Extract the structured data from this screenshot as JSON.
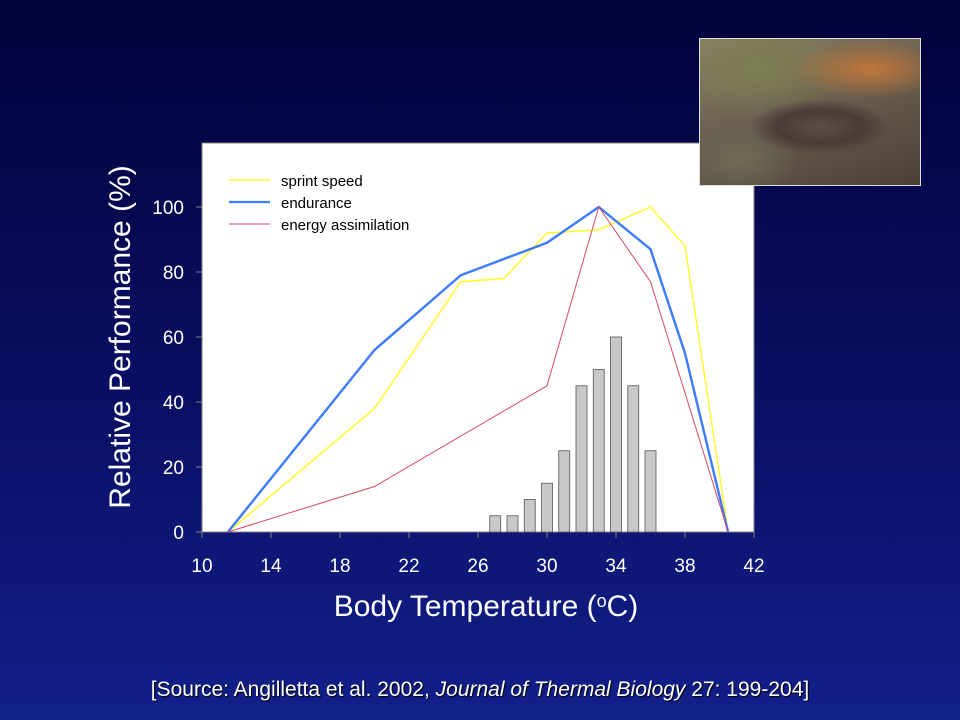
{
  "chart_data": {
    "type": "line",
    "xlabel_main": "Body Temperature (",
    "xlabel_degree": "o",
    "xlabel_unit": "C)",
    "ylabel": "Relative Performance (%)",
    "xlim": [
      10,
      42
    ],
    "ylim": [
      0,
      118
    ],
    "xticks": [
      10,
      14,
      18,
      22,
      26,
      30,
      34,
      38,
      42
    ],
    "yticks": [
      0,
      20,
      40,
      60,
      80,
      100
    ],
    "grid": false,
    "legend_position": "top-left",
    "series": [
      {
        "name": "sprint speed",
        "color": "#ffff00",
        "x": [
          11.5,
          20,
          25,
          27.5,
          30,
          33,
          36,
          38,
          40.5
        ],
        "y": [
          0,
          38,
          77,
          78,
          92,
          93,
          100,
          88,
          0
        ]
      },
      {
        "name": "endurance",
        "color": "#3d7bff",
        "x": [
          11.5,
          20,
          25,
          30,
          33,
          36,
          38,
          40.5
        ],
        "y": [
          0,
          56,
          79,
          89,
          100,
          87,
          55,
          0
        ]
      },
      {
        "name": "energy assimilation",
        "color": "#d44a62",
        "x": [
          11.5,
          20,
          30,
          33,
          36,
          40.5
        ],
        "y": [
          0,
          14,
          45,
          100,
          77,
          0
        ]
      }
    ],
    "histogram": {
      "color": "#c8c8c8",
      "x": [
        27,
        28,
        29,
        30,
        31,
        32,
        33,
        34,
        35,
        36
      ],
      "values": [
        5,
        5,
        10,
        15,
        25,
        45,
        50,
        60,
        45,
        25
      ]
    }
  },
  "source": {
    "prefix": "[Source: Angilletta et al. 2002, ",
    "journal": "Journal of Thermal Biology",
    "suffix": " 27: 199-204]"
  }
}
